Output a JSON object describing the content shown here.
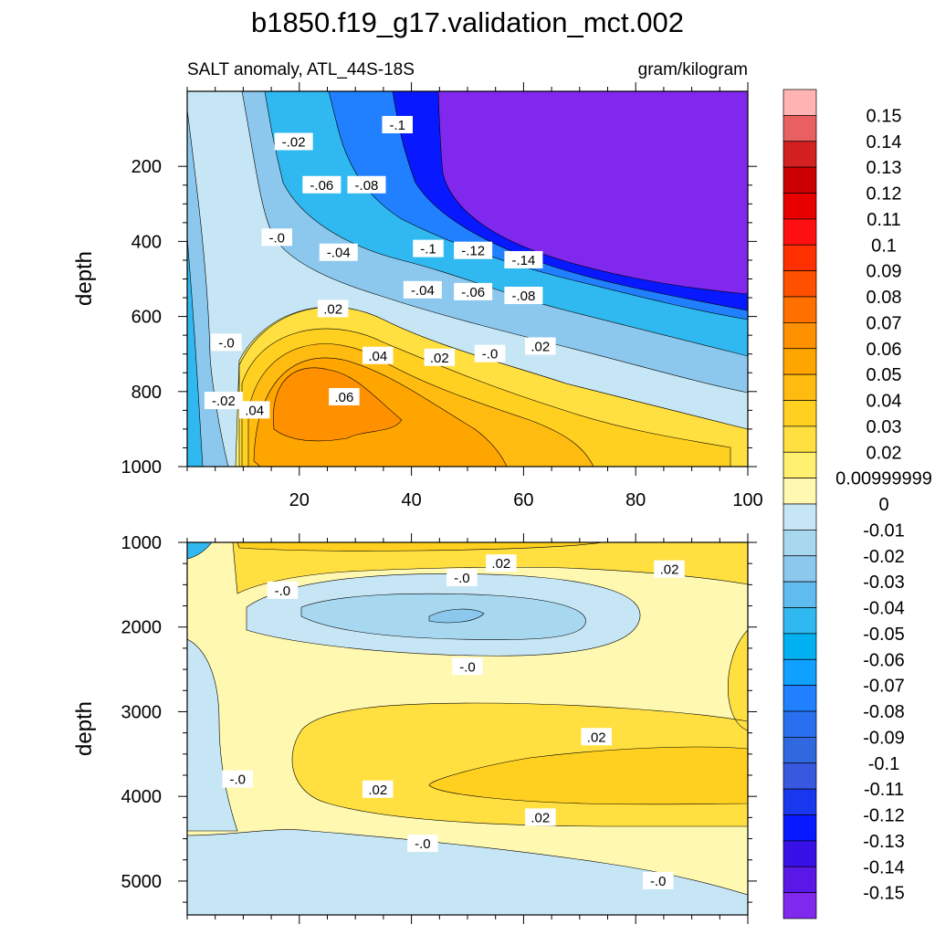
{
  "chart_data": {
    "type": "heatmap",
    "title": "b1850.f19_g17.validation_mct.002",
    "subtitle_left": "SALT anomaly, ATL_44S-18S",
    "subtitle_right": "gram/kilogram",
    "panels": [
      {
        "name": "upper",
        "ylabel": "depth",
        "xlim": [
          0,
          100
        ],
        "ylim": [
          0,
          1000
        ],
        "y_inverted": true,
        "x_ticks": [
          20,
          40,
          60,
          80,
          100
        ],
        "y_ticks": [
          200,
          400,
          600,
          800,
          1000
        ],
        "contour_labels": [
          {
            "text": "-.1",
            "x": 37.5,
            "y": 90
          },
          {
            "text": "-.02",
            "x": 19,
            "y": 135
          },
          {
            "text": "-.06",
            "x": 24,
            "y": 250
          },
          {
            "text": "-.08",
            "x": 32,
            "y": 250
          },
          {
            "text": "-.0",
            "x": 16,
            "y": 390
          },
          {
            "text": "-.04",
            "x": 27,
            "y": 430
          },
          {
            "text": "-.1",
            "x": 43,
            "y": 420
          },
          {
            "text": "-.12",
            "x": 51,
            "y": 425
          },
          {
            "text": "-.14",
            "x": 60,
            "y": 450
          },
          {
            "text": "-.04",
            "x": 42,
            "y": 530
          },
          {
            "text": "-.06",
            "x": 51,
            "y": 535
          },
          {
            "text": "-.08",
            "x": 60,
            "y": 545
          },
          {
            "text": ".02",
            "x": 26,
            "y": 580
          },
          {
            "text": "-.0",
            "x": 7,
            "y": 670
          },
          {
            "text": ".02",
            "x": 63,
            "y": 680
          },
          {
            "text": ".04",
            "x": 34,
            "y": 705
          },
          {
            "text": ".02",
            "x": 45,
            "y": 710
          },
          {
            "text": "-.0",
            "x": 54,
            "y": 700
          },
          {
            "text": "-.02",
            "x": 6.5,
            "y": 825
          },
          {
            "text": ".04",
            "x": 12,
            "y": 850
          },
          {
            "text": ".06",
            "x": 28,
            "y": 815
          }
        ]
      },
      {
        "name": "lower",
        "ylabel": "depth",
        "xlim": [
          0,
          100
        ],
        "ylim": [
          1000,
          5400
        ],
        "y_inverted": true,
        "x_ticks": [
          20,
          40,
          60,
          80,
          100
        ],
        "y_ticks": [
          1000,
          2000,
          3000,
          4000,
          5000
        ],
        "contour_labels": [
          {
            "text": ".02",
            "x": 56,
            "y": 1250
          },
          {
            "text": ".02",
            "x": 86,
            "y": 1320
          },
          {
            "text": "-.0",
            "x": 17,
            "y": 1570
          },
          {
            "text": "-.0",
            "x": 49,
            "y": 1420
          },
          {
            "text": "-.0",
            "x": 50,
            "y": 2470
          },
          {
            "text": ".02",
            "x": 73,
            "y": 3300
          },
          {
            "text": "-.0",
            "x": 9,
            "y": 3800
          },
          {
            "text": ".02",
            "x": 34,
            "y": 3920
          },
          {
            "text": ".02",
            "x": 63,
            "y": 4250
          },
          {
            "text": "-.0",
            "x": 42,
            "y": 4560
          },
          {
            "text": "-.0",
            "x": 84,
            "y": 5000
          }
        ]
      }
    ],
    "colorbar": {
      "labels": [
        "0.15",
        "0.14",
        "0.13",
        "0.12",
        "0.11",
        "0.1",
        "0.09",
        "0.08",
        "0.07",
        "0.06",
        "0.05",
        "0.04",
        "0.03",
        "0.02",
        "0.00999999",
        "0",
        "-0.01",
        "-0.02",
        "-0.03",
        "-0.04",
        "-0.05",
        "-0.06",
        "-0.07",
        "-0.08",
        "-0.09",
        "-0.1",
        "-0.11",
        "-0.12",
        "-0.13",
        "-0.14",
        "-0.15"
      ],
      "colors": [
        "#ffb3b3",
        "#e86060",
        "#d42020",
        "#cc0000",
        "#e80000",
        "#ff1010",
        "#ff3000",
        "#ff5000",
        "#ff7000",
        "#ff9000",
        "#ffa500",
        "#ffbb10",
        "#ffd020",
        "#ffe040",
        "#fff070",
        "#fff8b0",
        "#c7e6f5",
        "#a8d8f0",
        "#8cc8ee",
        "#60bcef",
        "#30b8f0",
        "#00b0f0",
        "#10a0ff",
        "#2080ff",
        "#2870f0",
        "#3068e0",
        "#3858e0",
        "#1838f0",
        "#0818ff",
        "#3810e8",
        "#5a18e8",
        "#8028ee"
      ]
    }
  }
}
